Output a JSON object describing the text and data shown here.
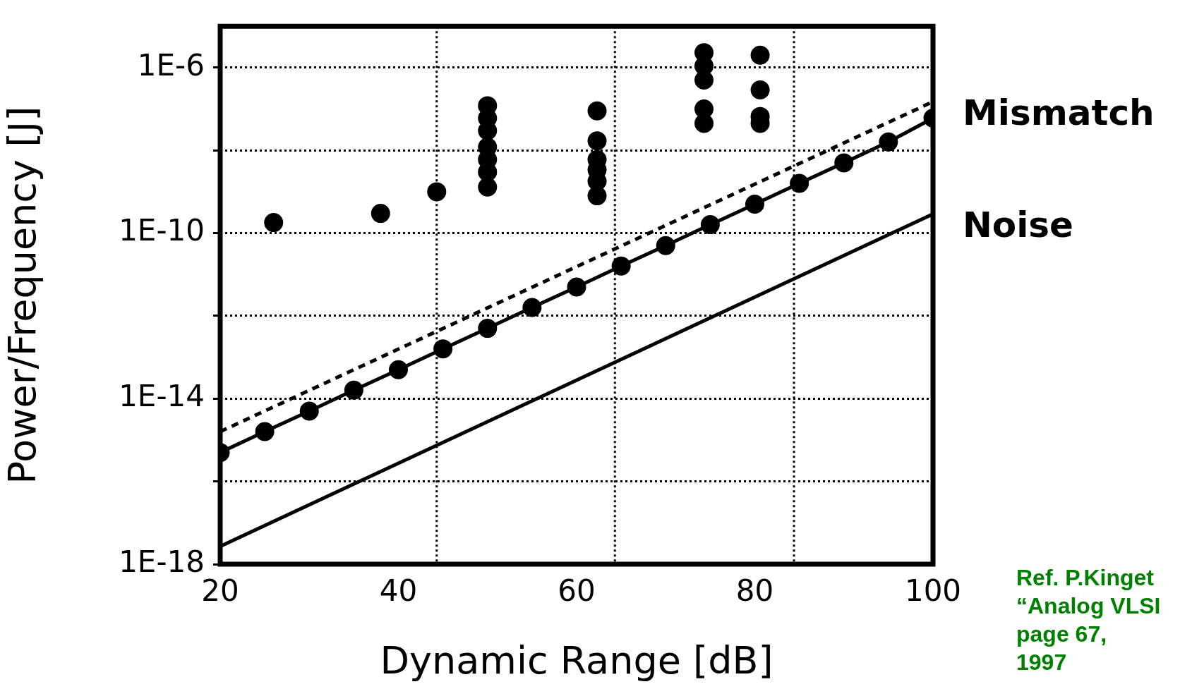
{
  "chart_data": {
    "type": "line",
    "xlabel": "Dynamic Range [dB]",
    "ylabel": "Power/Frequency [J]",
    "xlim": [
      20,
      100
    ],
    "xticks": [
      20,
      40,
      60,
      80,
      100
    ],
    "ylim": [
      1e-18,
      1e-05
    ],
    "yticks": [
      {
        "value": 1e-18,
        "label": "1E-18"
      },
      {
        "value": 1e-16,
        "label": null
      },
      {
        "value": 1e-14,
        "label": "1E-14"
      },
      {
        "value": 1e-12,
        "label": null
      },
      {
        "value": 1e-10,
        "label": "1E-10"
      },
      {
        "value": 1e-08,
        "label": null
      },
      {
        "value": 1e-06,
        "label": "1E-6"
      }
    ],
    "log": "y",
    "grid": "y",
    "ref_lines": [
      {
        "axis": "x",
        "value": 44.3,
        "line_style": "dotted"
      },
      {
        "axis": "x",
        "value": 64.3,
        "line_style": "dotted"
      },
      {
        "axis": "x",
        "value": 84.4,
        "line_style": "dotted"
      }
    ],
    "series": [
      {
        "color": "#000000",
        "marker": "circle",
        "line_style": "solid",
        "x": [
          20,
          25,
          30,
          35,
          40,
          45,
          50,
          55,
          60,
          65,
          70,
          75,
          80,
          85,
          90,
          95,
          100
        ],
        "values": [
          5e-16,
          1.6e-15,
          5e-15,
          1.6e-14,
          5e-14,
          1.6e-13,
          5e-13,
          1.6e-12,
          5e-12,
          1.6e-11,
          5e-11,
          1.6e-10,
          5e-10,
          1.6e-09,
          5e-09,
          1.6e-08,
          6e-08
        ]
      },
      {
        "name": "Mismatch",
        "color": "#000000",
        "marker": "none",
        "line_style": "dashed",
        "x": [
          20,
          100
        ],
        "values": [
          1.6e-15,
          1.5e-07
        ]
      },
      {
        "name": "Noise",
        "color": "#000000",
        "marker": "none",
        "line_style": "solid",
        "x": [
          20,
          100
        ],
        "values": [
          2.7e-18,
          2.9e-10
        ]
      },
      {
        "type": "scatter",
        "color": "#000000",
        "marker": "circle",
        "x": [
          26,
          38,
          44.3,
          50,
          50,
          50,
          50,
          50,
          50,
          50,
          62.3,
          62.3,
          62.3,
          62.3,
          62.3,
          62.3,
          74.3,
          74.3,
          74.3,
          74.3,
          74.3,
          80.6,
          80.6,
          80.6,
          80.6
        ],
        "values": [
          1.8e-10,
          3e-10,
          1e-09,
          1.2e-07,
          6e-08,
          3e-08,
          1.2e-08,
          6e-09,
          3e-09,
          1.3e-09,
          9e-08,
          1.7e-08,
          6e-09,
          3.4e-09,
          1.8e-09,
          8e-10,
          2.3e-06,
          1.1e-06,
          5e-07,
          1e-07,
          4.5e-08,
          2e-06,
          2.9e-07,
          6.6e-08,
          4.5e-08
        ]
      }
    ],
    "annotations": [
      "Ref. P.Kinget",
      "“Analog VLSI",
      "page 67,",
      "1997"
    ]
  }
}
